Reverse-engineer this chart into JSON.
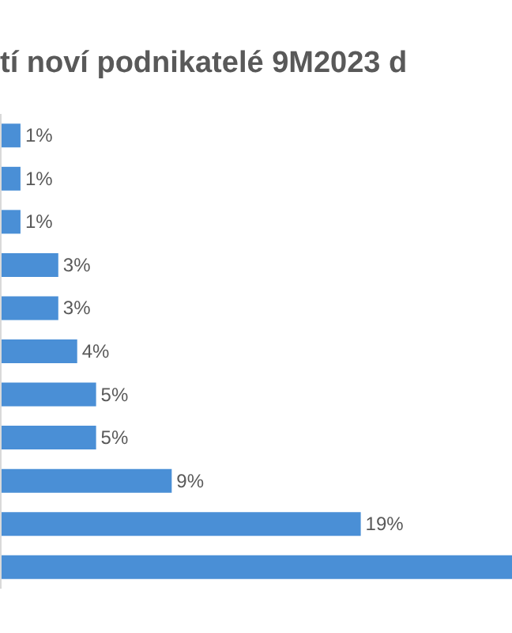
{
  "chart_data": {
    "type": "bar",
    "orientation": "horizontal",
    "title": "tí noví podnikatelé 9M2023 d",
    "categories": [
      null,
      null,
      null,
      null,
      null,
      null,
      null,
      null,
      null,
      null,
      null
    ],
    "values": [
      1,
      1,
      1,
      3,
      3,
      4,
      5,
      5,
      9,
      19,
      27
    ],
    "value_labels": [
      "1%",
      "1%",
      "1%",
      "3%",
      "3%",
      "4%",
      "5%",
      "5%",
      "9%",
      "19%",
      null
    ],
    "color": "#4a8fd6",
    "xlim": [
      0,
      27
    ],
    "tick_labels": false
  }
}
